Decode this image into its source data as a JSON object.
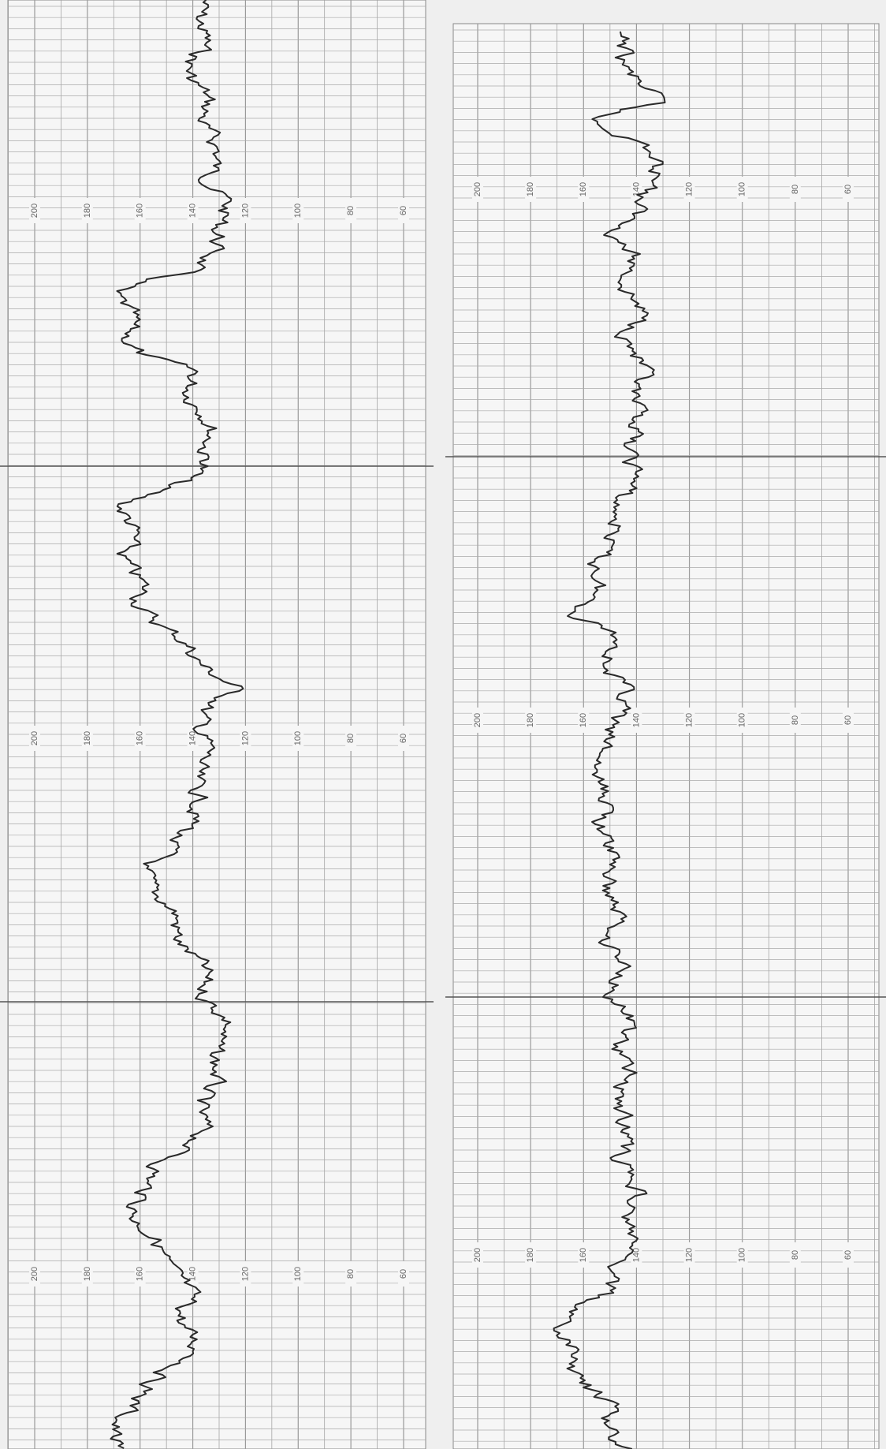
{
  "strips": [
    {
      "scale_rows": [
        {
          "labels": [
            200,
            180,
            160,
            140,
            120,
            100,
            80,
            60
          ]
        },
        {
          "labels": [
            200,
            180,
            160,
            140,
            120,
            100,
            80,
            60
          ]
        },
        {
          "labels": [
            200,
            180,
            160,
            140,
            120,
            100,
            80,
            60
          ]
        }
      ]
    },
    {
      "scale_rows": [
        {
          "labels": [
            200,
            180,
            160,
            140,
            120,
            100,
            80,
            60
          ]
        },
        {
          "labels": [
            200,
            180,
            160,
            140,
            120,
            100,
            80,
            60
          ]
        },
        {
          "labels": [
            200,
            180,
            160,
            140,
            120,
            100,
            80,
            60
          ]
        }
      ]
    }
  ]
}
